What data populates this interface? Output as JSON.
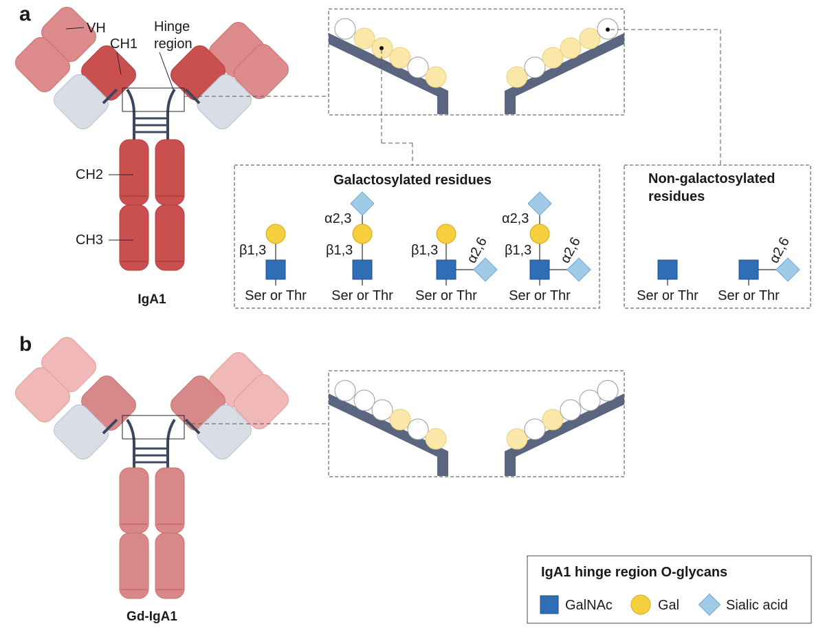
{
  "panel_a": {
    "letter": "a",
    "antibody_name": "IgA1",
    "domain_labels": {
      "vh": "VH",
      "ch1": "CH1",
      "hinge_line1": "Hinge",
      "hinge_line2": "region",
      "ch2": "CH2",
      "ch3": "CH3"
    },
    "galactosylated_title": "Galactosylated residues",
    "non_galactosylated_title_line1": "Non-galactosylated",
    "non_galactosylated_title_line2": "residues",
    "glycans": [
      {
        "linkages": [
          "β1,3"
        ],
        "residue": "Ser or Thr"
      },
      {
        "linkages": [
          "α2,3",
          "β1,3"
        ],
        "residue": "Ser or Thr"
      },
      {
        "linkages": [
          "β1,3",
          "α2,6"
        ],
        "residue": "Ser or Thr"
      },
      {
        "linkages": [
          "α2,3",
          "β1,3",
          "α2,6"
        ],
        "residue": "Ser or Thr"
      }
    ],
    "non_gal_glycans": [
      {
        "linkages": [],
        "residue": "Ser or Thr"
      },
      {
        "linkages": [
          "α2,6"
        ],
        "residue": "Ser or Thr"
      }
    ]
  },
  "panel_b": {
    "letter": "b",
    "antibody_name": "Gd-IgA1"
  },
  "legend": {
    "title": "IgA1 hinge region O-glycans",
    "items": [
      {
        "label": "GalNAc",
        "icon": "blue-square-icon",
        "color": "#2f6db5"
      },
      {
        "label": "Gal",
        "icon": "yellow-circle-icon",
        "color": "#f6cf3f"
      },
      {
        "label": "Sialic acid",
        "icon": "light-blue-diamond-icon",
        "color": "#9fcbe9"
      }
    ]
  },
  "colors": {
    "heavy_chain_a": "#c9504f",
    "heavy_chain_a_light": "#dc8a8b",
    "heavy_chain_b": "#d9888a",
    "heavy_chain_b_light": "#f0b8b6",
    "light_chain": "#d8dde6",
    "hinge_bar": "#5a6580",
    "pale_gal": "#fbe8a9",
    "empty_circle": "#ffffff"
  }
}
